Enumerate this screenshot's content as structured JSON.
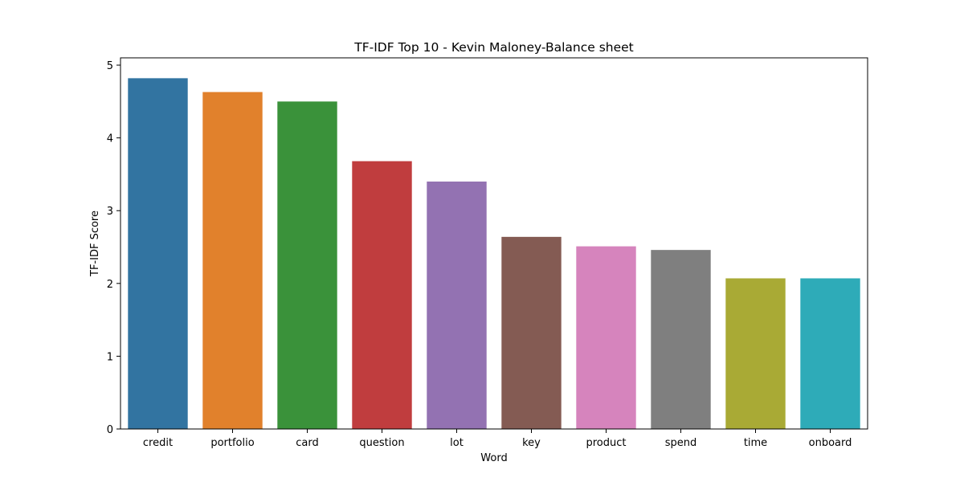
{
  "chart_data": {
    "type": "bar",
    "title": "TF-IDF Top 10 - Kevin Maloney-Balance sheet",
    "xlabel": "Word",
    "ylabel": "TF-IDF Score",
    "categories": [
      "credit",
      "portfolio",
      "card",
      "question",
      "lot",
      "key",
      "product",
      "spend",
      "time",
      "onboard"
    ],
    "values": [
      4.82,
      4.63,
      4.5,
      3.68,
      3.4,
      2.64,
      2.51,
      2.46,
      2.07,
      2.07
    ],
    "colors": [
      "#3274a1",
      "#e1812c",
      "#3a923a",
      "#c03d3e",
      "#9372b2",
      "#845b53",
      "#d684bd",
      "#7f7f7f",
      "#a9aa35",
      "#2eabb8"
    ],
    "ylim": [
      0,
      5.1
    ],
    "yticks": [
      0,
      1,
      2,
      3,
      4,
      5
    ],
    "grid": false,
    "legend": "none"
  }
}
